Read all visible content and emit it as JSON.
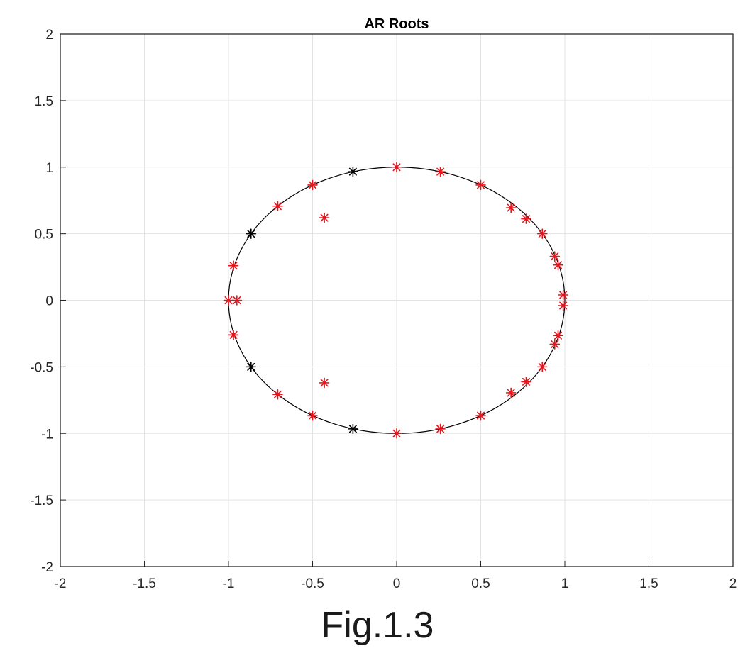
{
  "caption": "Fig.1.3",
  "chart_data": {
    "type": "scatter",
    "title": "AR Roots",
    "xlabel": "",
    "ylabel": "",
    "xlim": [
      -2,
      2
    ],
    "ylim": [
      -2,
      2
    ],
    "x_ticks": [
      -2,
      -1.5,
      -1,
      -0.5,
      0,
      0.5,
      1,
      1.5,
      2
    ],
    "y_ticks": [
      -2,
      -1.5,
      -1,
      -0.5,
      0,
      0.5,
      1,
      1.5,
      2
    ],
    "x_tick_labels": [
      "-2",
      "-1.5",
      "-1",
      "-0.5",
      "0",
      "0.5",
      "1",
      "1.5",
      "2"
    ],
    "y_tick_labels": [
      "-2",
      "-1.5",
      "-1",
      "-0.5",
      "0",
      "0.5",
      "1",
      "1.5",
      "2"
    ],
    "grid": true,
    "marker": "asterisk",
    "unit_circle": {
      "center": [
        0,
        0
      ],
      "radius": 1,
      "color": "#000000"
    },
    "series": [
      {
        "color": "#e8141b",
        "points": [
          [
            0.0,
            1.0
          ],
          [
            0.26,
            0.966
          ],
          [
            0.5,
            0.866
          ],
          [
            0.68,
            0.695
          ],
          [
            0.77,
            0.612
          ],
          [
            0.866,
            0.5
          ],
          [
            0.94,
            0.33
          ],
          [
            0.96,
            0.265
          ],
          [
            0.99,
            0.04
          ],
          [
            0.99,
            -0.04
          ],
          [
            0.96,
            -0.265
          ],
          [
            0.94,
            -0.33
          ],
          [
            0.866,
            -0.5
          ],
          [
            0.77,
            -0.612
          ],
          [
            0.68,
            -0.695
          ],
          [
            0.5,
            -0.866
          ],
          [
            0.26,
            -0.966
          ],
          [
            0.0,
            -1.0
          ],
          [
            -0.5,
            -0.866
          ],
          [
            -0.707,
            -0.707
          ],
          [
            -0.97,
            -0.26
          ],
          [
            -1.0,
            0.0
          ],
          [
            -0.95,
            0.0
          ],
          [
            -0.97,
            0.26
          ],
          [
            -0.707,
            0.707
          ],
          [
            -0.5,
            0.866
          ],
          [
            -0.43,
            0.62
          ],
          [
            -0.43,
            -0.62
          ]
        ]
      },
      {
        "color": "#000000",
        "points": [
          [
            -0.26,
            0.966
          ],
          [
            -0.866,
            0.5
          ],
          [
            -0.866,
            -0.5
          ],
          [
            -0.26,
            -0.966
          ]
        ]
      }
    ]
  }
}
